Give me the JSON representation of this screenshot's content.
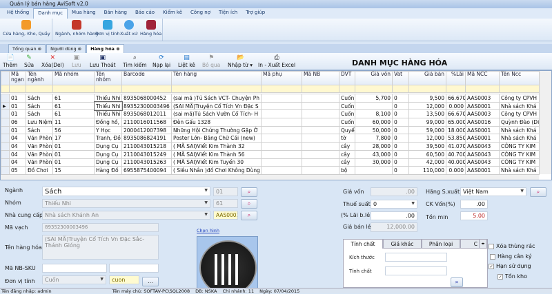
{
  "window": {
    "title": "Quản lý bán hàng AviSoft v2.0"
  },
  "menu": [
    "Hệ thống",
    "Danh mục",
    "Mua hàng",
    "Bán hàng",
    "Báo cáo",
    "Kiểm kê",
    "Công nợ",
    "Tiện ích",
    "Trợ giúp"
  ],
  "menu_active": "Danh mục",
  "ribbon": [
    {
      "label": "Cửa hàng, Kho, Quầy",
      "icon": "home-icon"
    },
    {
      "label": "Ngành, nhóm hàng",
      "icon": "group-icon"
    },
    {
      "label": "Đơn vị tính",
      "icon": "unit-icon"
    },
    {
      "label": "Xuất xứ",
      "icon": "globe-icon"
    },
    {
      "label": "Hàng hóa",
      "icon": "goods-icon"
    }
  ],
  "doc_tabs": [
    "Tổng quan",
    "Người dùng",
    "Hàng hóa"
  ],
  "toolbar": {
    "add": "Thêm",
    "edit": "Sửa",
    "delete": "Xóa(Del)",
    "save": "Lưu",
    "save_exit": "Lưu Thoát",
    "search": "Tìm kiếm",
    "reload": "Nạp lại",
    "list": "Liệt kê",
    "skip": "Bỏ qua",
    "import": "Nhập từ",
    "export": "In - Xuất Excel"
  },
  "page_title": "DANH MỤC HÀNG HÓA",
  "table": {
    "columns": [
      "Mã ngạn",
      "Tên ngành",
      "Mã nhóm",
      "Tên nhóm",
      "Barcode",
      "Tên hàng",
      "Mã phụ",
      "Mã NB",
      "DVT",
      "Giá vốn",
      "Vat",
      "Giá bán",
      "%Lãi",
      "Mã NCC",
      "Tên Ncc"
    ],
    "rows": [
      [
        "01",
        "Sách",
        "61",
        "Thiếu Nhi",
        "8935068000452",
        "(sai mã )Tủ Sách VCT- Chuyện Ph",
        "",
        "",
        "Cuốn",
        "5,700",
        "0",
        "9,500",
        "66.670",
        "AAS0003",
        "Công ty CPVH"
      ],
      [
        "01",
        "Sách",
        "61",
        "Thiếu Nhi",
        "89352300003496",
        "(SAI MÃ)Truyện Cổ Tích Vn Đặc S",
        "",
        "",
        "Cuốn",
        "",
        "0",
        "12,000",
        "0.000",
        "AAS0001",
        "Nhà sách  Khá"
      ],
      [
        "01",
        "Sách",
        "61",
        "Thiếu Nhi",
        "8935068012011",
        "(sai mã)Tủ Sách Vườn Cổ Tích- H",
        "",
        "",
        "Cuốn",
        "8,100",
        "0",
        "13,500",
        "66.670",
        "AAS0003",
        "Công ty CPVH"
      ],
      [
        "06",
        "Lưu Niệm",
        "11",
        "Đồng hồ,",
        "2110016011568",
        "Đèn Gấu 1328",
        "",
        "",
        "Cuốn",
        "60,000",
        "0",
        "99,000",
        "65.000",
        "AAS0016",
        "Quỳnh Đào (Di"
      ],
      [
        "01",
        "Sách",
        "56",
        "Y Học",
        "2000412007398",
        "Những Hội Chứng Thường Gặp Ở",
        "",
        "",
        "Quyể",
        "50,000",
        "0",
        "59,000",
        "18.000",
        "AAS0001",
        "Nhà sách  Khá"
      ],
      [
        "04",
        "Văn Phòn",
        "17",
        "Tranh, Đồ",
        "8935086824191",
        "Poster Lớn- Bảng Chữ Cái (new)",
        "",
        "",
        "tờ",
        "7,800",
        "0",
        "12,000",
        "53.850",
        "AAS0001",
        "Nhà sách  Khá"
      ],
      [
        "04",
        "Văn Phòn",
        "01",
        "Dụng Cụ",
        "2110043015218",
        "( MÃ SAI)Viết Kim Thành 32",
        "",
        "",
        "cây",
        "28,000",
        "0",
        "39,500",
        "41.070",
        "AAS0043",
        "CÔNG TY KIM"
      ],
      [
        "04",
        "Văn Phòn",
        "01",
        "Dụng Cụ",
        "2110043015249",
        "( MÃ SAI)Viết Kim Thành 56",
        "",
        "",
        "cây",
        "43,000",
        "0",
        "60,500",
        "40.700",
        "AAS0043",
        "CÔNG TY KIM"
      ],
      [
        "04",
        "Văn Phòn",
        "01",
        "Dụng Cụ",
        "2110043015263",
        "( MÃ SAI)Viết Kim Tuyến 30",
        "",
        "",
        "cây",
        "30,000",
        "0",
        "42,000",
        "40.000",
        "AAS0043",
        "CÔNG TY KIM"
      ],
      [
        "05",
        "Đồ Chơi",
        "15",
        "Hàng Đồ",
        "6955875400094",
        "( Siêu Nhân )đồ Chơi Không Dùng",
        "",
        "",
        "bộ",
        "",
        "0",
        "110,000",
        "0.000",
        "AAS0001",
        "Nhà sách  Khá"
      ]
    ]
  },
  "form": {
    "nganh": {
      "label": "Ngành",
      "value": "Sách",
      "code": "01"
    },
    "nhom": {
      "label": "Nhóm",
      "value": "Thiếu Nhi",
      "code": "61"
    },
    "ncc": {
      "label": "Nhà cung cấp",
      "value": "Nhà sách  Khánh An",
      "code": "AAS0001"
    },
    "ma_vach": {
      "label": "Mã vạch",
      "value": "89352300003496"
    },
    "ten_hang": {
      "label": "Tên hàng hóa",
      "value": "(SAI MÃ)Truyện Cổ Tích Vn Đặc Sắc- Thánh Gióng"
    },
    "ma_nb": {
      "label": "Mã NB-SKU",
      "value": "",
      "value2": ""
    },
    "dvt": {
      "label": "Đơn vị tính",
      "value": "Cuốn",
      "code": "cuon",
      "more": "..."
    },
    "choose_image": "Chọn hình",
    "gia_von": {
      "label": "Giá vốn",
      "value": ".00"
    },
    "thue_suat": {
      "label": "Thuế suất",
      "value": "0"
    },
    "lai_ble": {
      "label": "(% Lãi b.lẻ)",
      "value": ".00"
    },
    "gia_ban_le": {
      "label": "Giá bán lẻ",
      "value": "12,000.00"
    },
    "hang_sx": {
      "label": "Hãng S.xuất",
      "value": "Việt Nam"
    },
    "ck_von": {
      "label": "CK Vốn(%)",
      "value": ".00"
    },
    "ton_min": {
      "label": "Tồn min",
      "value": "5.00"
    },
    "tabs": [
      "Tính chất",
      "Giá khác",
      "Phân loại",
      "C"
    ],
    "kich_thuoc": {
      "label": "Kích thước",
      "value": ""
    },
    "tinh_chat": {
      "label": "Tính chất",
      "value": ""
    },
    "checks": [
      {
        "label": "Xóa thùng rác",
        "checked": false
      },
      {
        "label": "Hàng cân ký",
        "checked": false
      },
      {
        "label": "Hạn sử dụng",
        "checked": true
      },
      {
        "label": "Tồn kho",
        "checked": true
      }
    ]
  },
  "status": {
    "user": "Tên đăng nhập:  admin",
    "server": "Tên máy chủ:  SOFTAV-PC\\SQL2008",
    "db": "DB:  NSKA",
    "branch": "Chi nhánh:  11",
    "date": "Ngày:  07/04/2015"
  }
}
